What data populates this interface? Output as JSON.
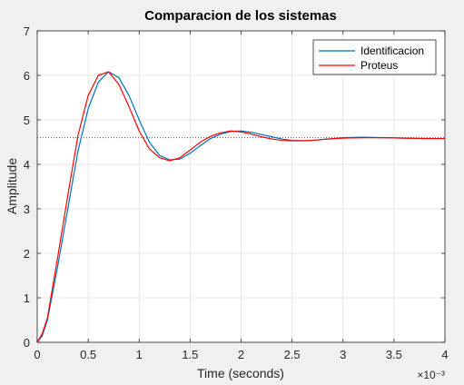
{
  "chart_data": {
    "type": "line",
    "title": "Comparacion de los sistemas",
    "xlabel": "Time (seconds)",
    "ylabel": "Amplitude",
    "x_exponent_label": "×10⁻³",
    "xlim": [
      0,
      0.004
    ],
    "ylim": [
      0,
      7
    ],
    "x_ticks": [
      0,
      0.0005,
      0.001,
      0.0015,
      0.002,
      0.0025,
      0.003,
      0.0035,
      0.004
    ],
    "x_tick_labels": [
      "0",
      "0.5",
      "1",
      "1.5",
      "2",
      "2.5",
      "3",
      "3.5",
      "4"
    ],
    "y_ticks": [
      0,
      1,
      2,
      3,
      4,
      5,
      6,
      7
    ],
    "y_tick_labels": [
      "0",
      "1",
      "2",
      "3",
      "4",
      "5",
      "6",
      "7"
    ],
    "grid": true,
    "legend_position": "top-right",
    "reference_line": {
      "y": 4.6,
      "style": "dotted",
      "color": "#555555"
    },
    "series": [
      {
        "name": "Identificacion",
        "color": "#0072BD",
        "x": [
          0,
          5e-05,
          0.0001,
          0.0002,
          0.0003,
          0.0004,
          0.0005,
          0.0006,
          0.0007,
          0.0008,
          0.0009,
          0.001,
          0.0011,
          0.0012,
          0.0013,
          0.0014,
          0.0015,
          0.0016,
          0.0017,
          0.0018,
          0.0019,
          0.002,
          0.0021,
          0.0022,
          0.0023,
          0.0024,
          0.0025,
          0.0026,
          0.0027,
          0.0028,
          0.003,
          0.0032,
          0.0034,
          0.0036,
          0.0038,
          0.004
        ],
        "y": [
          0,
          0.15,
          0.5,
          1.7,
          3.0,
          4.3,
          5.25,
          5.85,
          6.08,
          5.95,
          5.55,
          5.0,
          4.5,
          4.2,
          4.1,
          4.12,
          4.25,
          4.42,
          4.58,
          4.68,
          4.74,
          4.75,
          4.72,
          4.67,
          4.62,
          4.57,
          4.54,
          4.53,
          4.54,
          4.56,
          4.6,
          4.61,
          4.6,
          4.59,
          4.58,
          4.58
        ]
      },
      {
        "name": "Proteus",
        "color": "#FF0000",
        "x": [
          0,
          5e-05,
          0.0001,
          0.0002,
          0.0003,
          0.0004,
          0.0005,
          0.0006,
          0.0007,
          0.0008,
          0.0009,
          0.001,
          0.0011,
          0.0012,
          0.0013,
          0.0014,
          0.0015,
          0.0016,
          0.0017,
          0.0018,
          0.0019,
          0.002,
          0.0021,
          0.0022,
          0.0023,
          0.0024,
          0.0025,
          0.0026,
          0.0027,
          0.0028,
          0.003,
          0.0032,
          0.0034,
          0.0036,
          0.0038,
          0.004
        ],
        "y": [
          0,
          0.2,
          0.55,
          1.9,
          3.3,
          4.65,
          5.55,
          6.0,
          6.08,
          5.8,
          5.3,
          4.75,
          4.35,
          4.15,
          4.08,
          4.15,
          4.32,
          4.5,
          4.63,
          4.71,
          4.75,
          4.73,
          4.68,
          4.62,
          4.57,
          4.54,
          4.53,
          4.53,
          4.54,
          4.56,
          4.59,
          4.6,
          4.6,
          4.59,
          4.58,
          4.58
        ]
      }
    ]
  }
}
